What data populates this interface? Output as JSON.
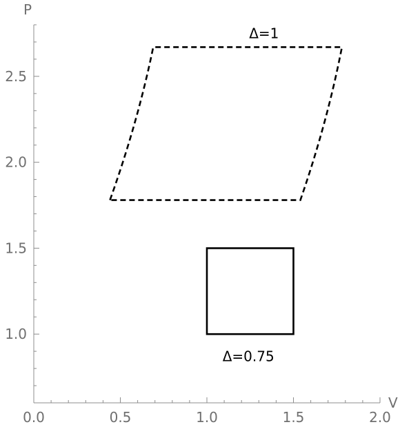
{
  "chart_data": {
    "type": "line",
    "xlabel": "V",
    "ylabel": "P",
    "xlim": [
      0,
      2.0
    ],
    "ylim": [
      0.6,
      2.8
    ],
    "xticks": [
      "0.0",
      "0.5",
      "1.0",
      "1.5",
      "2.0"
    ],
    "yticks": [
      "1.0",
      "1.5",
      "2.0",
      "2.5"
    ],
    "grid": false,
    "series": [
      {
        "label": "Δ=1",
        "style": "dashed",
        "color": "#000000",
        "points": [
          [
            0.44,
            1.78
          ],
          [
            0.69,
            2.67
          ],
          [
            1.78,
            2.67
          ],
          [
            1.54,
            1.78
          ],
          [
            0.44,
            1.78
          ]
        ]
      },
      {
        "label": "Δ=0.75",
        "style": "solid",
        "color": "#000000",
        "points": [
          [
            1.0,
            1.0
          ],
          [
            1.0,
            1.5
          ],
          [
            1.5,
            1.5
          ],
          [
            1.5,
            1.0
          ],
          [
            1.0,
            1.0
          ]
        ]
      }
    ],
    "annotations": [
      {
        "text": "Δ=1",
        "x": 1.33,
        "y": 2.75
      },
      {
        "text": "Δ=0.75",
        "x": 1.24,
        "y": 0.87
      }
    ]
  }
}
